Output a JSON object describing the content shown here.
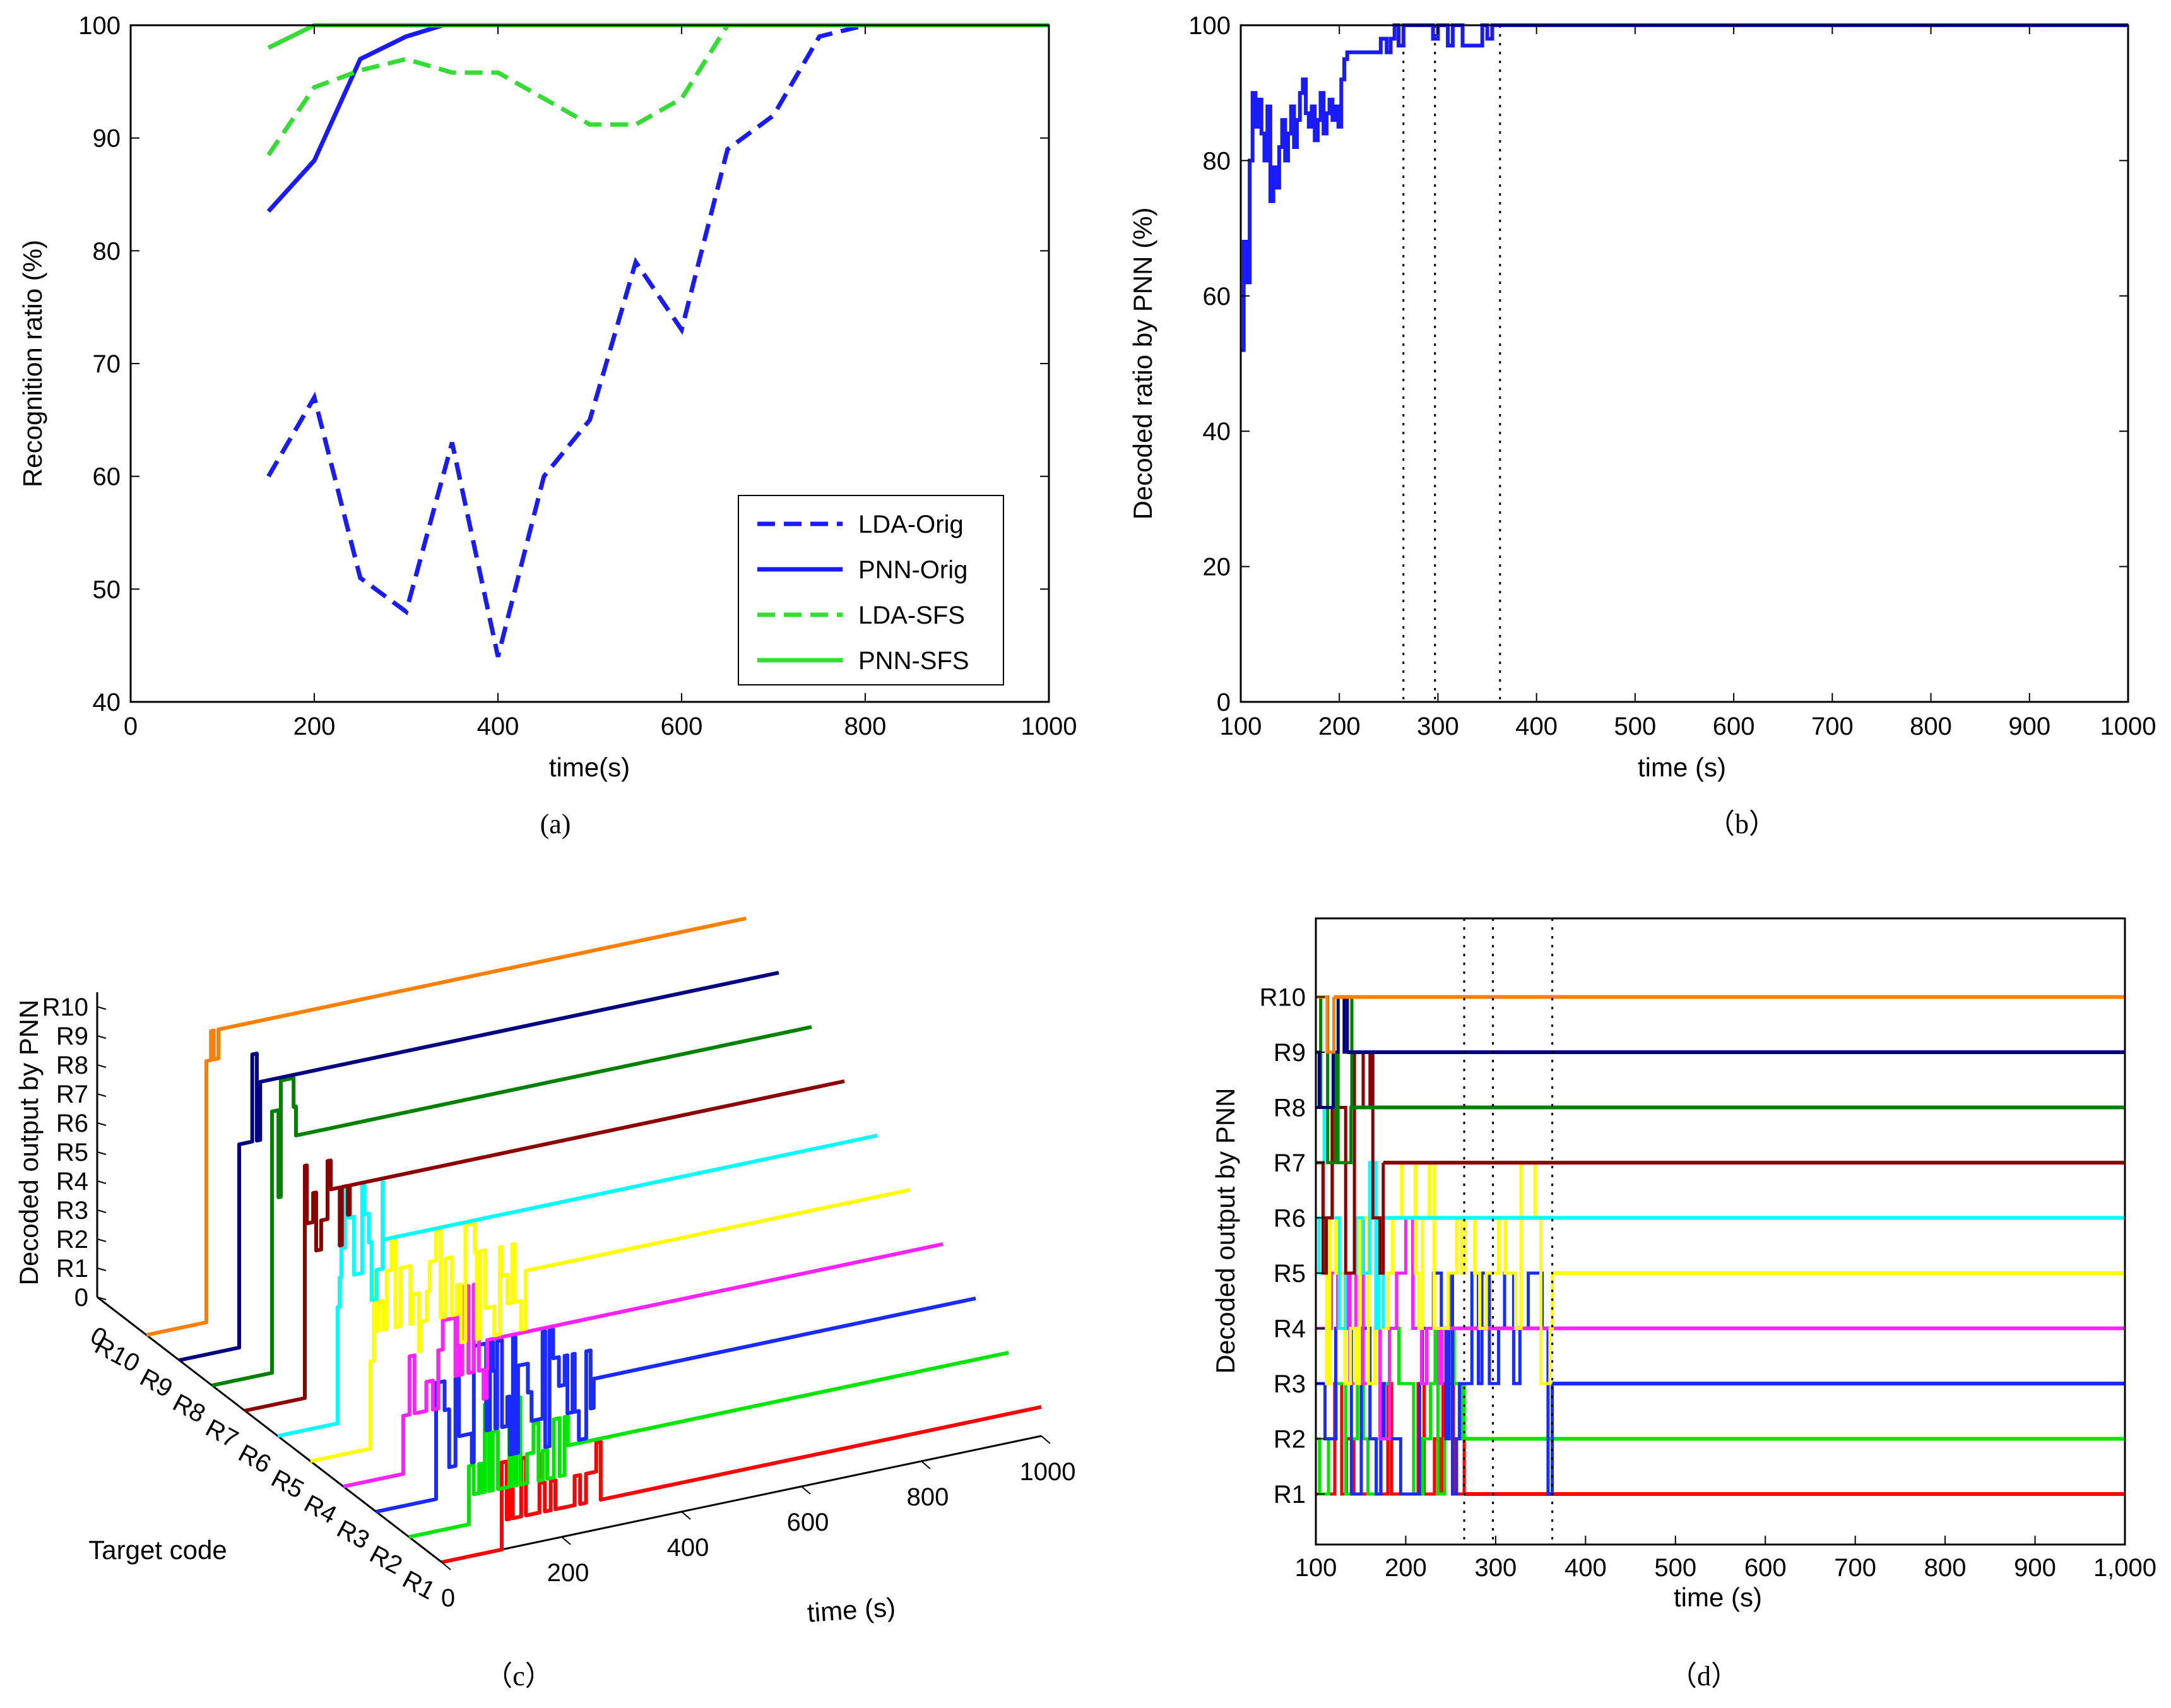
{
  "chart_data": [
    {
      "id": "a",
      "caption": "(a)",
      "type": "line",
      "xlabel": "time(s)",
      "ylabel": "Recognition ratio (%)",
      "xlim": [
        0,
        1000
      ],
      "ylim": [
        40,
        100
      ],
      "xticks": [
        0,
        200,
        400,
        600,
        800,
        1000
      ],
      "yticks": [
        40,
        50,
        60,
        70,
        80,
        90,
        100
      ],
      "legend_position": "bottom-right",
      "series": [
        {
          "name": "LDA-Orig",
          "color": "#1a1aff",
          "dash": "dashed",
          "x": [
            150,
            200,
            250,
            300,
            350,
            400,
            450,
            500,
            550,
            600,
            650,
            700,
            750,
            800,
            1000
          ],
          "y": [
            60,
            67,
            51,
            48,
            63,
            44,
            60,
            65,
            79,
            73,
            89,
            92,
            99,
            100,
            100
          ]
        },
        {
          "name": "PNN-Orig",
          "color": "#1a1aff",
          "dash": "solid",
          "x": [
            150,
            200,
            250,
            300,
            340,
            1000
          ],
          "y": [
            83.5,
            88,
            97,
            99,
            100,
            100
          ]
        },
        {
          "name": "LDA-SFS",
          "color": "#33dd33",
          "dash": "dashed",
          "x": [
            150,
            200,
            250,
            300,
            350,
            400,
            450,
            500,
            550,
            600,
            650,
            1000
          ],
          "y": [
            88.5,
            94.5,
            96,
            97,
            95.8,
            95.8,
            93.5,
            91.2,
            91.2,
            93.5,
            100,
            100
          ]
        },
        {
          "name": "PNN-SFS",
          "color": "#33dd33",
          "dash": "solid",
          "x": [
            150,
            200,
            1000
          ],
          "y": [
            98,
            100,
            100
          ]
        }
      ]
    },
    {
      "id": "b",
      "caption": "（b）",
      "type": "line",
      "xlabel": "time (s)",
      "ylabel": "Decoded ratio by PNN (%)",
      "xlim": [
        100,
        1000
      ],
      "ylim": [
        0,
        100
      ],
      "xticks": [
        100,
        200,
        300,
        400,
        500,
        600,
        700,
        800,
        900,
        1000
      ],
      "yticks": [
        0,
        20,
        40,
        60,
        80,
        100
      ],
      "vlines": [
        265,
        297,
        363
      ],
      "series": [
        {
          "name": "Decoded ratio",
          "color": "#1a1aff",
          "dash": "solid",
          "x": [
            100,
            103,
            106,
            109,
            112,
            115,
            118,
            121,
            124,
            127,
            130,
            133,
            136,
            139,
            142,
            145,
            148,
            151,
            154,
            157,
            160,
            163,
            166,
            169,
            172,
            175,
            178,
            181,
            184,
            187,
            190,
            193,
            196,
            199,
            202,
            205,
            208,
            212,
            218,
            224,
            230,
            236,
            242,
            248,
            252,
            256,
            260,
            265,
            270,
            275,
            280,
            285,
            290,
            295,
            300,
            305,
            310,
            315,
            320,
            325,
            330,
            335,
            340,
            345,
            350,
            355,
            360,
            365,
            1000
          ],
          "y": [
            52,
            68,
            62,
            80,
            90,
            85,
            89,
            84,
            80,
            88,
            74,
            79,
            76,
            82,
            86,
            80,
            84,
            88,
            82,
            86,
            90,
            92,
            87,
            85,
            88,
            83,
            86,
            90,
            84,
            87,
            89,
            86,
            88,
            85,
            92,
            95,
            96,
            96,
            96,
            96,
            96,
            96,
            98,
            96,
            98,
            100,
            97,
            100,
            100,
            100,
            100,
            100,
            100,
            98,
            100,
            100,
            97,
            100,
            100,
            97,
            97,
            97,
            97,
            100,
            98,
            100,
            100,
            100,
            100
          ]
        }
      ]
    },
    {
      "id": "c",
      "caption": "（c）",
      "type": "line",
      "xlabel": "time (s)",
      "ylabel": "Decoded output by PNN",
      "depth_label": "Target code",
      "xticks": [
        "0",
        "200",
        "400",
        "600",
        "800",
        "1000"
      ],
      "zticks": [
        "0",
        "R1",
        "R2",
        "R3",
        "R4",
        "R5",
        "R6",
        "R7",
        "R8",
        "R9",
        "R10"
      ],
      "depth_ticks": [
        "R1",
        "R2",
        "R3",
        "R4",
        "R5",
        "R6",
        "R7",
        "R8",
        "R9",
        "R10",
        "0"
      ],
      "series": [
        {
          "name": "R1",
          "color": "#ff0000"
        },
        {
          "name": "R2",
          "color": "#00e600"
        },
        {
          "name": "R3",
          "color": "#1a2bff"
        },
        {
          "name": "R4",
          "color": "#ff22ff"
        },
        {
          "name": "R5",
          "color": "#ffff00"
        },
        {
          "name": "R6",
          "color": "#00ffff"
        },
        {
          "name": "R7",
          "color": "#8b0000"
        },
        {
          "name": "R8",
          "color": "#008000"
        },
        {
          "name": "R9",
          "color": "#000080"
        },
        {
          "name": "R10",
          "color": "#ff8000"
        }
      ]
    },
    {
      "id": "d",
      "caption": "（d）",
      "type": "line",
      "xlabel": "time (s)",
      "ylabel": "Decoded output by PNN",
      "xlim": [
        100,
        1000
      ],
      "xticks": [
        "100",
        "200",
        "300",
        "400",
        "500",
        "600",
        "700",
        "800",
        "900",
        "1,000"
      ],
      "yticks": [
        "R1",
        "R2",
        "R3",
        "R4",
        "R5",
        "R6",
        "R7",
        "R8",
        "R9",
        "R10"
      ],
      "vlines": [
        265,
        297,
        363
      ],
      "settle_times": [
        265,
        265,
        363,
        240,
        363,
        175,
        175,
        140,
        135,
        120
      ],
      "series": [
        {
          "name": "R1",
          "color": "#ff0000"
        },
        {
          "name": "R2",
          "color": "#00e600"
        },
        {
          "name": "R3",
          "color": "#1a2bff"
        },
        {
          "name": "R4",
          "color": "#ff22ff"
        },
        {
          "name": "R5",
          "color": "#ffff00"
        },
        {
          "name": "R6",
          "color": "#00ffff"
        },
        {
          "name": "R7",
          "color": "#8b0000"
        },
        {
          "name": "R8",
          "color": "#008000"
        },
        {
          "name": "R9",
          "color": "#000080"
        },
        {
          "name": "R10",
          "color": "#ff8000"
        }
      ]
    }
  ]
}
